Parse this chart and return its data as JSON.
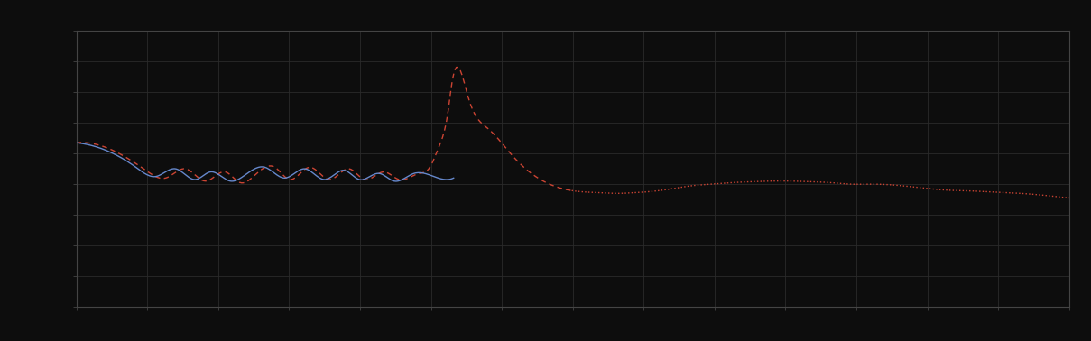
{
  "background_color": "#0d0d0d",
  "grid_color": "#2a2a2a",
  "plot_bg_color": "#0d0d0d",
  "blue_color": "#6688cc",
  "red_color": "#cc4433",
  "fig_width": 12.09,
  "fig_height": 3.78,
  "dpi": 100,
  "xlim": [
    0,
    1
  ],
  "ylim": [
    0,
    9
  ],
  "grid_cols": 14,
  "grid_rows": 9,
  "spine_color": "#444444"
}
